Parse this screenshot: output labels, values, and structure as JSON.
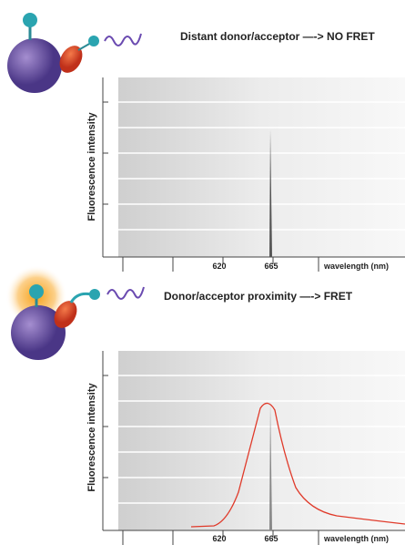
{
  "panels": [
    {
      "title": "Distant donor/acceptor —-> NO FRET",
      "y_axis_label": "Fluorescence intensity",
      "x_ticks": [
        "620",
        "665"
      ],
      "x_axis_label": "wavelength (nm)"
    },
    {
      "title": "Donor/acceptor proximity —-> FRET",
      "y_axis_label": "Fluorescence intensity",
      "x_ticks": [
        "620",
        "665"
      ],
      "x_axis_label": "wavelength (nm)"
    }
  ]
}
